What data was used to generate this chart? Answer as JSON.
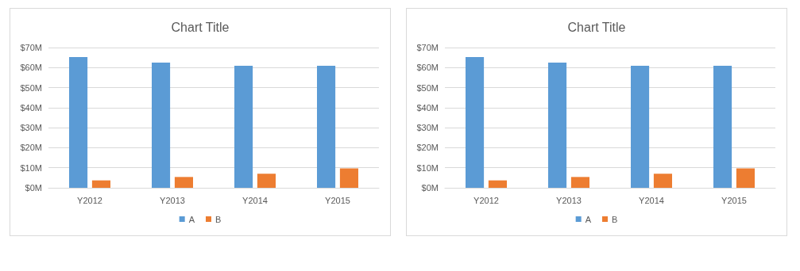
{
  "chart_data": [
    {
      "type": "bar",
      "title": "Chart Title",
      "categories": [
        "Y2012",
        "Y2013",
        "Y2014",
        "Y2015"
      ],
      "series": [
        {
          "name": "A",
          "color": "#5b9bd5",
          "values": [
            65.3,
            62.5,
            60.9,
            60.9
          ]
        },
        {
          "name": "B",
          "color": "#ed7d31",
          "values": [
            3.7,
            5.4,
            7.0,
            9.7
          ]
        }
      ],
      "ylim": [
        0,
        70
      ],
      "yticks": [
        {
          "value": 0,
          "label": "$0M"
        },
        {
          "value": 10,
          "label": "$10M"
        },
        {
          "value": 20,
          "label": "$20M"
        },
        {
          "value": 30,
          "label": "$30M"
        },
        {
          "value": 40,
          "label": "$40M"
        },
        {
          "value": 50,
          "label": "$50M"
        },
        {
          "value": 60,
          "label": "$60M"
        },
        {
          "value": 70,
          "label": "$70M"
        }
      ],
      "grid": "y",
      "legend": "bottom"
    },
    {
      "type": "bar",
      "title": "Chart Title",
      "categories": [
        "Y2012",
        "Y2013",
        "Y2014",
        "Y2015"
      ],
      "series": [
        {
          "name": "A",
          "color": "#5b9bd5",
          "values": [
            65.3,
            62.5,
            60.9,
            60.9
          ]
        },
        {
          "name": "B",
          "color": "#ed7d31",
          "values": [
            3.7,
            5.4,
            7.0,
            9.7
          ]
        }
      ],
      "ylim": [
        0,
        70
      ],
      "yticks": [
        {
          "value": 0,
          "label": "$0M"
        },
        {
          "value": 10,
          "label": "$10M"
        },
        {
          "value": 20,
          "label": "$20M"
        },
        {
          "value": 30,
          "label": "$30M"
        },
        {
          "value": 40,
          "label": "$40M"
        },
        {
          "value": 50,
          "label": "$50M"
        },
        {
          "value": 60,
          "label": "$60M"
        },
        {
          "value": 70,
          "label": "$70M"
        }
      ],
      "grid": "y",
      "legend": "bottom"
    }
  ]
}
